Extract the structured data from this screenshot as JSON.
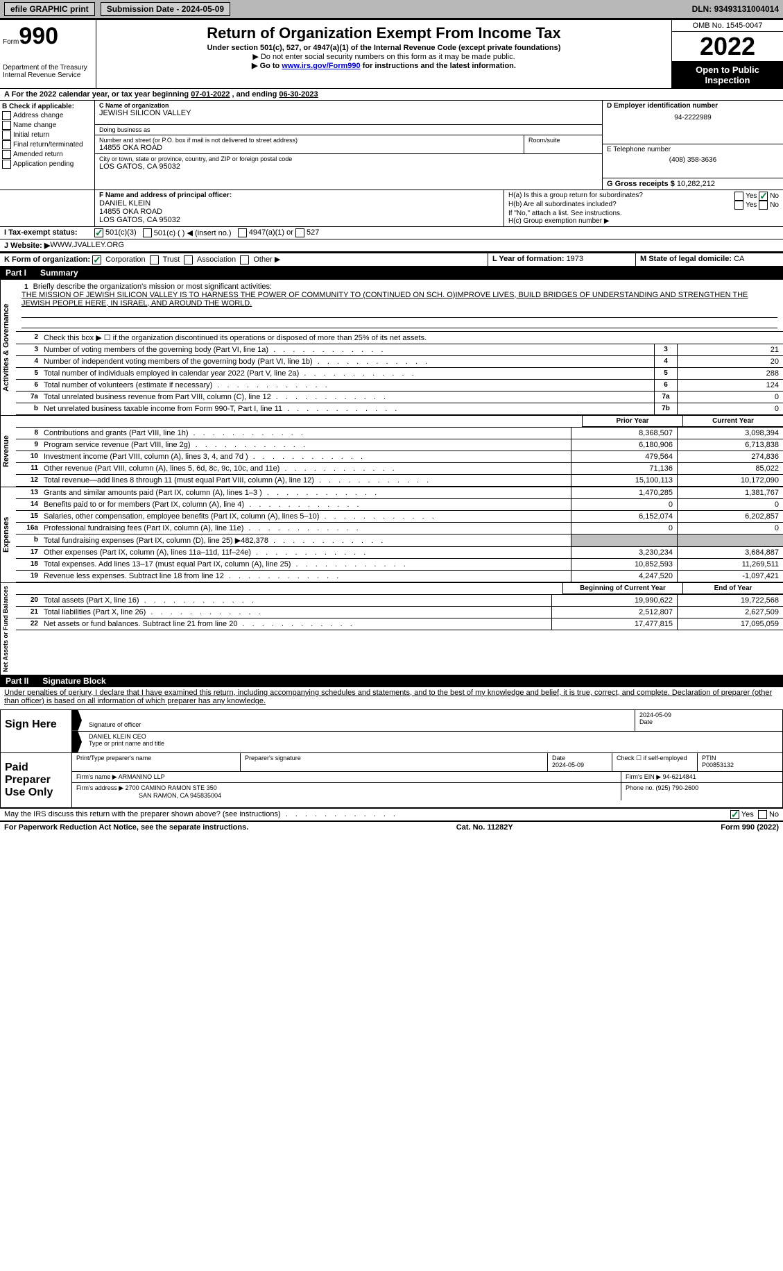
{
  "topbar": {
    "efile_btn": "efile GRAPHIC print",
    "submission_label": "Submission Date - ",
    "submission_date": "2024-05-09",
    "dln_label": "DLN: ",
    "dln": "93493131004014"
  },
  "header": {
    "form_prefix": "Form",
    "form_number": "990",
    "dept": "Department of the Treasury\nInternal Revenue Service",
    "title": "Return of Organization Exempt From Income Tax",
    "subtitle": "Under section 501(c), 527, or 4947(a)(1) of the Internal Revenue Code (except private foundations)",
    "note1": "▶ Do not enter social security numbers on this form as it may be made public.",
    "note2_prefix": "▶ Go to ",
    "note2_link": "www.irs.gov/Form990",
    "note2_suffix": " for instructions and the latest information.",
    "omb": "OMB No. 1545-0047",
    "year": "2022",
    "inspection": "Open to Public Inspection"
  },
  "line_a": {
    "prefix": "A For the 2022 calendar year, or tax year beginning ",
    "begin": "07-01-2022",
    "mid": "   , and ending ",
    "end": "06-30-2023"
  },
  "col_b": {
    "header": "B Check if applicable:",
    "items": [
      "Address change",
      "Name change",
      "Initial return",
      "Final return/terminated",
      "Amended return",
      "Application pending"
    ]
  },
  "col_c": {
    "name_label": "C Name of organization",
    "name": "JEWISH SILICON VALLEY",
    "dba_label": "Doing business as",
    "dba": "",
    "street_label": "Number and street (or P.O. box if mail is not delivered to street address)",
    "room_label": "Room/suite",
    "street": "14855 OKA ROAD",
    "city_label": "City or town, state or province, country, and ZIP or foreign postal code",
    "city": "LOS GATOS, CA  95032"
  },
  "col_d": {
    "ein_label": "D Employer identification number",
    "ein": "94-2222989",
    "phone_label": "E Telephone number",
    "phone": "(408) 358-3636",
    "gross_label": "G Gross receipts $ ",
    "gross": "10,282,212"
  },
  "section_f": {
    "label": "F  Name and address of principal officer:",
    "name": "DANIEL KLEIN",
    "street": "14855 OKA ROAD",
    "city": "LOS GATOS, CA  95032"
  },
  "section_h": {
    "ha": "H(a)  Is this a group return for subordinates?",
    "hb": "H(b)  Are all subordinates included?",
    "hb_note": "If \"No,\" attach a list. See instructions.",
    "hc": "H(c)  Group exemption number ▶",
    "yes": "Yes",
    "no": "No"
  },
  "line_i": {
    "label": "I    Tax-exempt status:",
    "opt1": "501(c)(3)",
    "opt2": "501(c) (  ) ◀ (insert no.)",
    "opt3": "4947(a)(1) or",
    "opt4": "527"
  },
  "line_j": {
    "label": "J    Website: ▶ ",
    "value": "WWW.JVALLEY.ORG"
  },
  "line_k": {
    "label": "K Form of organization:",
    "corp": "Corporation",
    "trust": "Trust",
    "assoc": "Association",
    "other": "Other ▶"
  },
  "line_l": {
    "label": "L Year of formation: ",
    "value": "1973"
  },
  "line_m": {
    "label": "M State of legal domicile: ",
    "value": "CA"
  },
  "part1": {
    "label": "Part I",
    "title": "Summary"
  },
  "mission": {
    "num": "1",
    "label": "Briefly describe the organization's mission or most significant activities:",
    "text": "THE MISSION OF JEWISH SILICON VALLEY IS TO HARNESS THE POWER OF COMMUNITY TO (CONTINUED ON SCH. O)IMPROVE LIVES, BUILD BRIDGES OF UNDERSTANDING AND STRENGTHEN THE JEWISH PEOPLE HERE, IN ISRAEL, AND AROUND THE WORLD."
  },
  "line2": {
    "num": "2",
    "text": "Check this box ▶ ☐  if the organization discontinued its operations or disposed of more than 25% of its net assets."
  },
  "vtabs": {
    "activities": "Activities & Governance",
    "revenue": "Revenue",
    "expenses": "Expenses",
    "netassets": "Net Assets or Fund Balances"
  },
  "gov_rows": [
    {
      "n": "3",
      "d": "Number of voting members of the governing body (Part VI, line 1a)",
      "b": "3",
      "v": "21"
    },
    {
      "n": "4",
      "d": "Number of independent voting members of the governing body (Part VI, line 1b)",
      "b": "4",
      "v": "20"
    },
    {
      "n": "5",
      "d": "Total number of individuals employed in calendar year 2022 (Part V, line 2a)",
      "b": "5",
      "v": "288"
    },
    {
      "n": "6",
      "d": "Total number of volunteers (estimate if necessary)",
      "b": "6",
      "v": "124"
    },
    {
      "n": "7a",
      "d": "Total unrelated business revenue from Part VIII, column (C), line 12",
      "b": "7a",
      "v": "0"
    },
    {
      "n": "b",
      "d": "Net unrelated business taxable income from Form 990-T, Part I, line 11",
      "b": "7b",
      "v": "0"
    }
  ],
  "col_headers": {
    "prior": "Prior Year",
    "current": "Current Year",
    "begin": "Beginning of Current Year",
    "end": "End of Year"
  },
  "rev_rows": [
    {
      "n": "8",
      "d": "Contributions and grants (Part VIII, line 1h)",
      "p": "8,368,507",
      "c": "3,098,394"
    },
    {
      "n": "9",
      "d": "Program service revenue (Part VIII, line 2g)",
      "p": "6,180,906",
      "c": "6,713,838"
    },
    {
      "n": "10",
      "d": "Investment income (Part VIII, column (A), lines 3, 4, and 7d )",
      "p": "479,564",
      "c": "274,836"
    },
    {
      "n": "11",
      "d": "Other revenue (Part VIII, column (A), lines 5, 6d, 8c, 9c, 10c, and 11e)",
      "p": "71,136",
      "c": "85,022"
    },
    {
      "n": "12",
      "d": "Total revenue—add lines 8 through 11 (must equal Part VIII, column (A), line 12)",
      "p": "15,100,113",
      "c": "10,172,090"
    }
  ],
  "exp_rows": [
    {
      "n": "13",
      "d": "Grants and similar amounts paid (Part IX, column (A), lines 1–3 )",
      "p": "1,470,285",
      "c": "1,381,767"
    },
    {
      "n": "14",
      "d": "Benefits paid to or for members (Part IX, column (A), line 4)",
      "p": "0",
      "c": "0"
    },
    {
      "n": "15",
      "d": "Salaries, other compensation, employee benefits (Part IX, column (A), lines 5–10)",
      "p": "6,152,074",
      "c": "6,202,857"
    },
    {
      "n": "16a",
      "d": "Professional fundraising fees (Part IX, column (A), line 11e)",
      "p": "0",
      "c": "0"
    },
    {
      "n": "b",
      "d": "Total fundraising expenses (Part IX, column (D), line 25) ▶482,378",
      "p": "",
      "c": "",
      "shade": true
    },
    {
      "n": "17",
      "d": "Other expenses (Part IX, column (A), lines 11a–11d, 11f–24e)",
      "p": "3,230,234",
      "c": "3,684,887"
    },
    {
      "n": "18",
      "d": "Total expenses. Add lines 13–17 (must equal Part IX, column (A), line 25)",
      "p": "10,852,593",
      "c": "11,269,511"
    },
    {
      "n": "19",
      "d": "Revenue less expenses. Subtract line 18 from line 12",
      "p": "4,247,520",
      "c": "-1,097,421"
    }
  ],
  "net_rows": [
    {
      "n": "20",
      "d": "Total assets (Part X, line 16)",
      "p": "19,990,622",
      "c": "19,722,568"
    },
    {
      "n": "21",
      "d": "Total liabilities (Part X, line 26)",
      "p": "2,512,807",
      "c": "2,627,509"
    },
    {
      "n": "22",
      "d": "Net assets or fund balances. Subtract line 21 from line 20",
      "p": "17,477,815",
      "c": "17,095,059"
    }
  ],
  "part2": {
    "label": "Part II",
    "title": "Signature Block"
  },
  "sig": {
    "declaration": "Under penalties of perjury, I declare that I have examined this return, including accompanying schedules and statements, and to the best of my knowledge and belief, it is true, correct, and complete. Declaration of preparer (other than officer) is based on all information of which preparer has any knowledge.",
    "sign_here": "Sign Here",
    "sig_officer": "Signature of officer",
    "sig_date": "2024-05-09",
    "date_label": "Date",
    "officer_name": "DANIEL KLEIN  CEO",
    "type_name": "Type or print name and title",
    "paid_prep": "Paid Preparer Use Only",
    "prep_name_label": "Print/Type preparer's name",
    "prep_sig_label": "Preparer's signature",
    "prep_date": "2024-05-09",
    "check_if": "Check ☐ if self-employed",
    "ptin_label": "PTIN",
    "ptin": "P00853132",
    "firm_name_label": "Firm's name     ▶ ",
    "firm_name": "ARMANINO LLP",
    "firm_ein_label": "Firm's EIN ▶ ",
    "firm_ein": "94-6214841",
    "firm_addr_label": "Firm's address ▶ ",
    "firm_addr1": "2700 CAMINO RAMON STE 350",
    "firm_addr2": "SAN RAMON, CA  945835004",
    "firm_phone_label": "Phone no. ",
    "firm_phone": "(925) 790-2600",
    "may_irs": "May the IRS discuss this return with the preparer shown above? (see instructions)"
  },
  "footer": {
    "paperwork": "For Paperwork Reduction Act Notice, see the separate instructions.",
    "cat": "Cat. No. 11282Y",
    "form": "Form 990 (2022)"
  }
}
